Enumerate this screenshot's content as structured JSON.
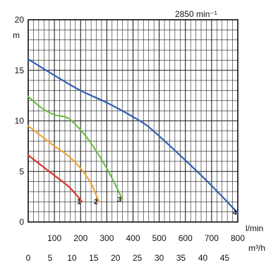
{
  "speed_label": "2850 min⁻¹",
  "chart_data": {
    "type": "line",
    "ylabel": "m",
    "xlabel": "l/min",
    "x2label": "m³/h",
    "ylim": [
      0,
      20
    ],
    "xlim": [
      0,
      800
    ],
    "grid": true,
    "y_ticks": [
      "0",
      "5",
      "10",
      "15",
      "20"
    ],
    "x_ticks": [
      "100",
      "200",
      "300",
      "400",
      "500",
      "600",
      "700",
      "800"
    ],
    "x2_ticks": [
      "0",
      "5",
      "10",
      "15",
      "20",
      "25",
      "30",
      "35",
      "40",
      "45"
    ],
    "colors": {
      "1": "#d9342b",
      "2": "#f2a33a",
      "3": "#6dbf45",
      "4": "#2f5fb3"
    },
    "series": [
      {
        "name": "1",
        "x": [
          0,
          50,
          100,
          150,
          180,
          205
        ],
        "y": [
          6.6,
          5.6,
          4.6,
          3.6,
          2.8,
          2.0
        ]
      },
      {
        "name": "2",
        "x": [
          0,
          50,
          100,
          150,
          200,
          240,
          270
        ],
        "y": [
          9.5,
          8.5,
          7.5,
          6.6,
          5.3,
          3.8,
          2.0
        ]
      },
      {
        "name": "3",
        "x": [
          0,
          50,
          100,
          150,
          200,
          250,
          300,
          340,
          360
        ],
        "y": [
          12.4,
          11.3,
          10.6,
          10.3,
          9.1,
          7.4,
          5.3,
          3.3,
          2.2
        ]
      },
      {
        "name": "4",
        "x": [
          0,
          100,
          200,
          300,
          400,
          450,
          500,
          600,
          700,
          800
        ],
        "y": [
          16.1,
          14.5,
          13.0,
          11.8,
          10.4,
          9.6,
          8.5,
          6.1,
          3.6,
          0.9
        ]
      }
    ]
  }
}
